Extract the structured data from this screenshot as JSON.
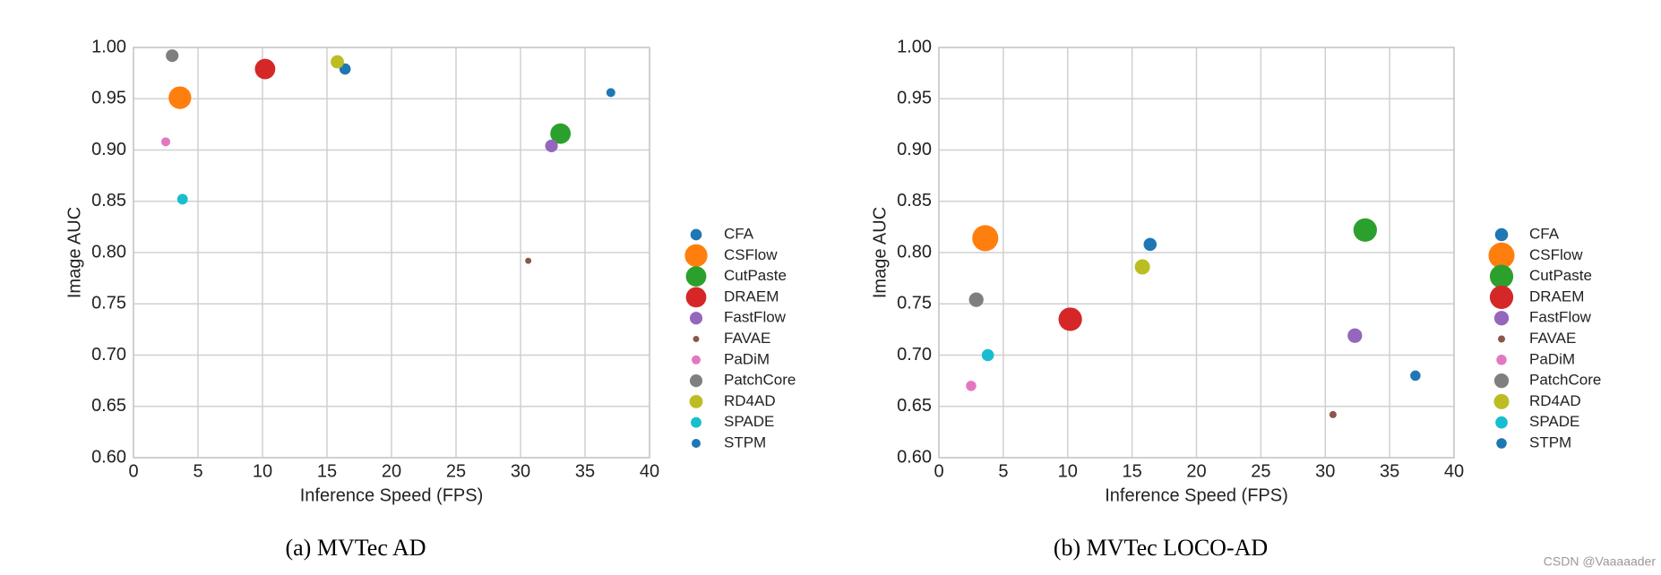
{
  "chart_data": [
    {
      "type": "scatter",
      "caption": "(a)  MVTec AD",
      "xlabel": "Inference Speed (FPS)",
      "ylabel": "Image AUC",
      "xlim": [
        0,
        40
      ],
      "xticks": [
        0,
        5,
        10,
        15,
        20,
        25,
        30,
        35,
        40
      ],
      "ylim": [
        0.6,
        1.0
      ],
      "yticks": [
        {
          "value": 0.6,
          "label": "0.60"
        },
        {
          "value": 0.65,
          "label": "0.65"
        },
        {
          "value": 0.7,
          "label": "0.70"
        },
        {
          "value": 0.75,
          "label": "0.75"
        },
        {
          "value": 0.8,
          "label": "0.80"
        },
        {
          "value": 0.85,
          "label": "0.85"
        },
        {
          "value": 0.9,
          "label": "0.90"
        },
        {
          "value": 0.95,
          "label": "0.95"
        },
        {
          "value": 1.0,
          "label": "1.00"
        }
      ],
      "grid": true,
      "series": [
        {
          "name": "CFA",
          "color": "#1f77b4",
          "x": [
            16.4
          ],
          "values": [
            0.979
          ],
          "size": 40
        },
        {
          "name": "CSFlow",
          "color": "#ff7f0e",
          "x": [
            3.6
          ],
          "values": [
            0.951
          ],
          "size": 160
        },
        {
          "name": "CutPaste",
          "color": "#2ca02c",
          "x": [
            33.1
          ],
          "values": [
            0.916
          ],
          "size": 130
        },
        {
          "name": "DRAEM",
          "color": "#d62728",
          "x": [
            10.2
          ],
          "values": [
            0.979
          ],
          "size": 130
        },
        {
          "name": "FastFlow",
          "color": "#9467bd",
          "x": [
            32.4
          ],
          "values": [
            0.904
          ],
          "size": 50
        },
        {
          "name": "FAVAE",
          "color": "#8c564b",
          "x": [
            30.6
          ],
          "values": [
            0.792
          ],
          "size": 12
        },
        {
          "name": "PaDiM",
          "color": "#e377c2",
          "x": [
            2.5
          ],
          "values": [
            0.908
          ],
          "size": 25
        },
        {
          "name": "PatchCore",
          "color": "#7f7f7f",
          "x": [
            3.0
          ],
          "values": [
            0.992
          ],
          "size": 50
        },
        {
          "name": "RD4AD",
          "color": "#bcbd22",
          "x": [
            15.8
          ],
          "values": [
            0.986
          ],
          "size": 55
        },
        {
          "name": "SPADE",
          "color": "#17becf",
          "x": [
            3.8
          ],
          "values": [
            0.852
          ],
          "size": 35
        },
        {
          "name": "STPM",
          "color": "#1f77b4",
          "x": [
            37.0
          ],
          "values": [
            0.956
          ],
          "size": 25
        }
      ]
    },
    {
      "type": "scatter",
      "caption": "(b)  MVTec LOCO-AD",
      "xlabel": "Inference Speed (FPS)",
      "ylabel": "Image AUC",
      "xlim": [
        0,
        40
      ],
      "xticks": [
        0,
        5,
        10,
        15,
        20,
        25,
        30,
        35,
        40
      ],
      "ylim": [
        0.6,
        1.0
      ],
      "yticks": [
        {
          "value": 0.6,
          "label": "0.60"
        },
        {
          "value": 0.65,
          "label": "0.65"
        },
        {
          "value": 0.7,
          "label": "0.70"
        },
        {
          "value": 0.75,
          "label": "0.75"
        },
        {
          "value": 0.8,
          "label": "0.80"
        },
        {
          "value": 0.85,
          "label": "0.85"
        },
        {
          "value": 0.9,
          "label": "0.90"
        },
        {
          "value": 0.95,
          "label": "0.95"
        },
        {
          "value": 1.0,
          "label": "1.00"
        }
      ],
      "grid": true,
      "series": [
        {
          "name": "CFA",
          "color": "#1f77b4",
          "x": [
            16.4
          ],
          "values": [
            0.808
          ],
          "size": 40
        },
        {
          "name": "CSFlow",
          "color": "#ff7f0e",
          "x": [
            3.6
          ],
          "values": [
            0.814
          ],
          "size": 160
        },
        {
          "name": "CutPaste",
          "color": "#2ca02c",
          "x": [
            33.1
          ],
          "values": [
            0.822
          ],
          "size": 130
        },
        {
          "name": "DRAEM",
          "color": "#d62728",
          "x": [
            10.2
          ],
          "values": [
            0.735
          ],
          "size": 130
        },
        {
          "name": "FastFlow",
          "color": "#9467bd",
          "x": [
            32.3
          ],
          "values": [
            0.719
          ],
          "size": 50
        },
        {
          "name": "FAVAE",
          "color": "#8c564b",
          "x": [
            30.6
          ],
          "values": [
            0.642
          ],
          "size": 12
        },
        {
          "name": "PaDiM",
          "color": "#e377c2",
          "x": [
            2.5
          ],
          "values": [
            0.67
          ],
          "size": 25
        },
        {
          "name": "PatchCore",
          "color": "#7f7f7f",
          "x": [
            2.9
          ],
          "values": [
            0.754
          ],
          "size": 50
        },
        {
          "name": "RD4AD",
          "color": "#bcbd22",
          "x": [
            15.8
          ],
          "values": [
            0.786
          ],
          "size": 55
        },
        {
          "name": "SPADE",
          "color": "#17becf",
          "x": [
            3.8
          ],
          "values": [
            0.7
          ],
          "size": 35
        },
        {
          "name": "STPM",
          "color": "#1f77b4",
          "x": [
            37.0
          ],
          "values": [
            0.68
          ],
          "size": 25
        }
      ]
    }
  ],
  "watermark": "CSDN @Vaaaaader"
}
